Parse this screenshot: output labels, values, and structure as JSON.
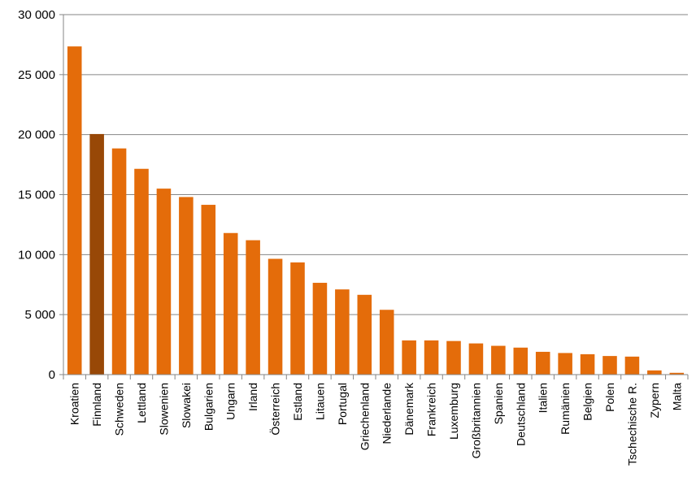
{
  "chart_data": {
    "type": "bar",
    "title": "",
    "xlabel": "",
    "ylabel": "",
    "ylim": [
      0,
      30000
    ],
    "yticks": [
      0,
      5000,
      10000,
      15000,
      20000,
      25000,
      30000
    ],
    "ytick_labels": [
      "0",
      "5 000",
      "10 000",
      "15 000",
      "20 000",
      "25 000",
      "30 000"
    ],
    "grid": true,
    "legend": "none",
    "categories": [
      "Kroatien",
      "Finnland",
      "Schweden",
      "Lettland",
      "Slowenien",
      "Slowakei",
      "Bulgarien",
      "Ungarn",
      "Irland",
      "Österreich",
      "Estland",
      "Litauen",
      "Portugal",
      "Griechenland",
      "Niederlande",
      "Dänemark",
      "Frankreich",
      "Luxemburg",
      "Großbritannien",
      "Spanien",
      "Deutschland",
      "Italien",
      "Rumänien",
      "Belgien",
      "Polen",
      "Tschechische R.",
      "Zypern",
      "Malta"
    ],
    "values": [
      27350,
      20050,
      18850,
      17150,
      15500,
      14800,
      14150,
      11800,
      11200,
      9650,
      9350,
      7650,
      7100,
      6650,
      5400,
      2850,
      2850,
      2800,
      2600,
      2400,
      2250,
      1900,
      1800,
      1700,
      1550,
      1500,
      350,
      150
    ],
    "colors": {
      "bar": "#e46c0a",
      "highlight": "#984807",
      "grid": "#868686",
      "axis": "#868686"
    },
    "highlight_category": "Finnland"
  }
}
